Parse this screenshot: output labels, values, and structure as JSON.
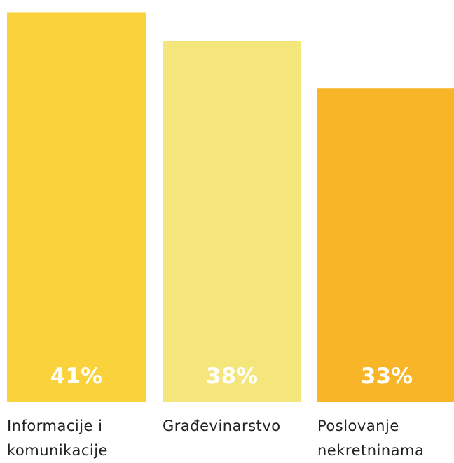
{
  "chart_data": {
    "type": "bar",
    "categories": [
      "Informacije i komunikacije",
      "Građevinarstvo",
      "Poslovanje nekretninama"
    ],
    "values": [
      41,
      38,
      33
    ],
    "value_labels": [
      "41%",
      "38%",
      "33%"
    ],
    "colors": [
      "#f9d23c",
      "#f5e67c",
      "#f8b527"
    ]
  }
}
